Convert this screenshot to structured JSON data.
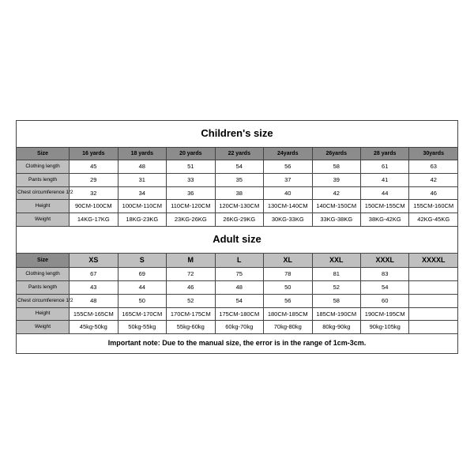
{
  "children": {
    "title": "Children's size",
    "row_labels": [
      "Size",
      "Clothing length",
      "Pants length",
      "Chest circumference 1/2",
      "Height",
      "Weight"
    ],
    "columns": [
      "16 yards",
      "18 yards",
      "20 yards",
      "22 yards",
      "24yards",
      "26yards",
      "28 yards",
      "30yards"
    ],
    "rows": [
      [
        "45",
        "48",
        "51",
        "54",
        "56",
        "58",
        "61",
        "63"
      ],
      [
        "29",
        "31",
        "33",
        "35",
        "37",
        "39",
        "41",
        "42"
      ],
      [
        "32",
        "34",
        "36",
        "38",
        "40",
        "42",
        "44",
        "46"
      ],
      [
        "90CM-100CM",
        "100CM-110CM",
        "110CM-120CM",
        "120CM-130CM",
        "130CM-140CM",
        "140CM-150CM",
        "150CM-155CM",
        "155CM-160CM"
      ],
      [
        "14KG-17KG",
        "18KG-23KG",
        "23KG-26KG",
        "26KG-29KG",
        "30KG-33KG",
        "33KG-38KG",
        "38KG-42KG",
        "42KG-45KG"
      ]
    ]
  },
  "adult": {
    "title": "Adult size",
    "row_labels": [
      "Size",
      "Clothing length",
      "Pants length",
      "Chest circumference 1/2",
      "Height",
      "Weight"
    ],
    "columns": [
      "XS",
      "S",
      "M",
      "L",
      "XL",
      "XXL",
      "XXXL",
      "XXXXL"
    ],
    "rows": [
      [
        "67",
        "69",
        "72",
        "75",
        "78",
        "81",
        "83",
        ""
      ],
      [
        "43",
        "44",
        "46",
        "48",
        "50",
        "52",
        "54",
        ""
      ],
      [
        "48",
        "50",
        "52",
        "54",
        "56",
        "58",
        "60",
        ""
      ],
      [
        "155CM-165CM",
        "165CM-170CM",
        "170CM-175CM",
        "175CM-180CM",
        "180CM-185CM",
        "185CM-190CM",
        "190CM-195CM",
        ""
      ],
      [
        "45kg-50kg",
        "50kg-55kg",
        "55kg-60kg",
        "60kg-70kg",
        "70kg-80kg",
        "80kg-90kg",
        "90kg-105kg",
        ""
      ]
    ]
  },
  "note": "Important note: Due to the manual size, the error is in the range of 1cm-3cm.",
  "colors": {
    "header_bg": "#8c8c8c",
    "label_bg": "#bfbfbf",
    "border": "#444444",
    "background": "#ffffff",
    "text": "#000000"
  },
  "typography": {
    "title_fontsize_pt": 13,
    "header_fontsize_pt": 7,
    "cell_fontsize_pt": 7.5,
    "note_fontsize_pt": 9,
    "font_family": "Arial"
  }
}
